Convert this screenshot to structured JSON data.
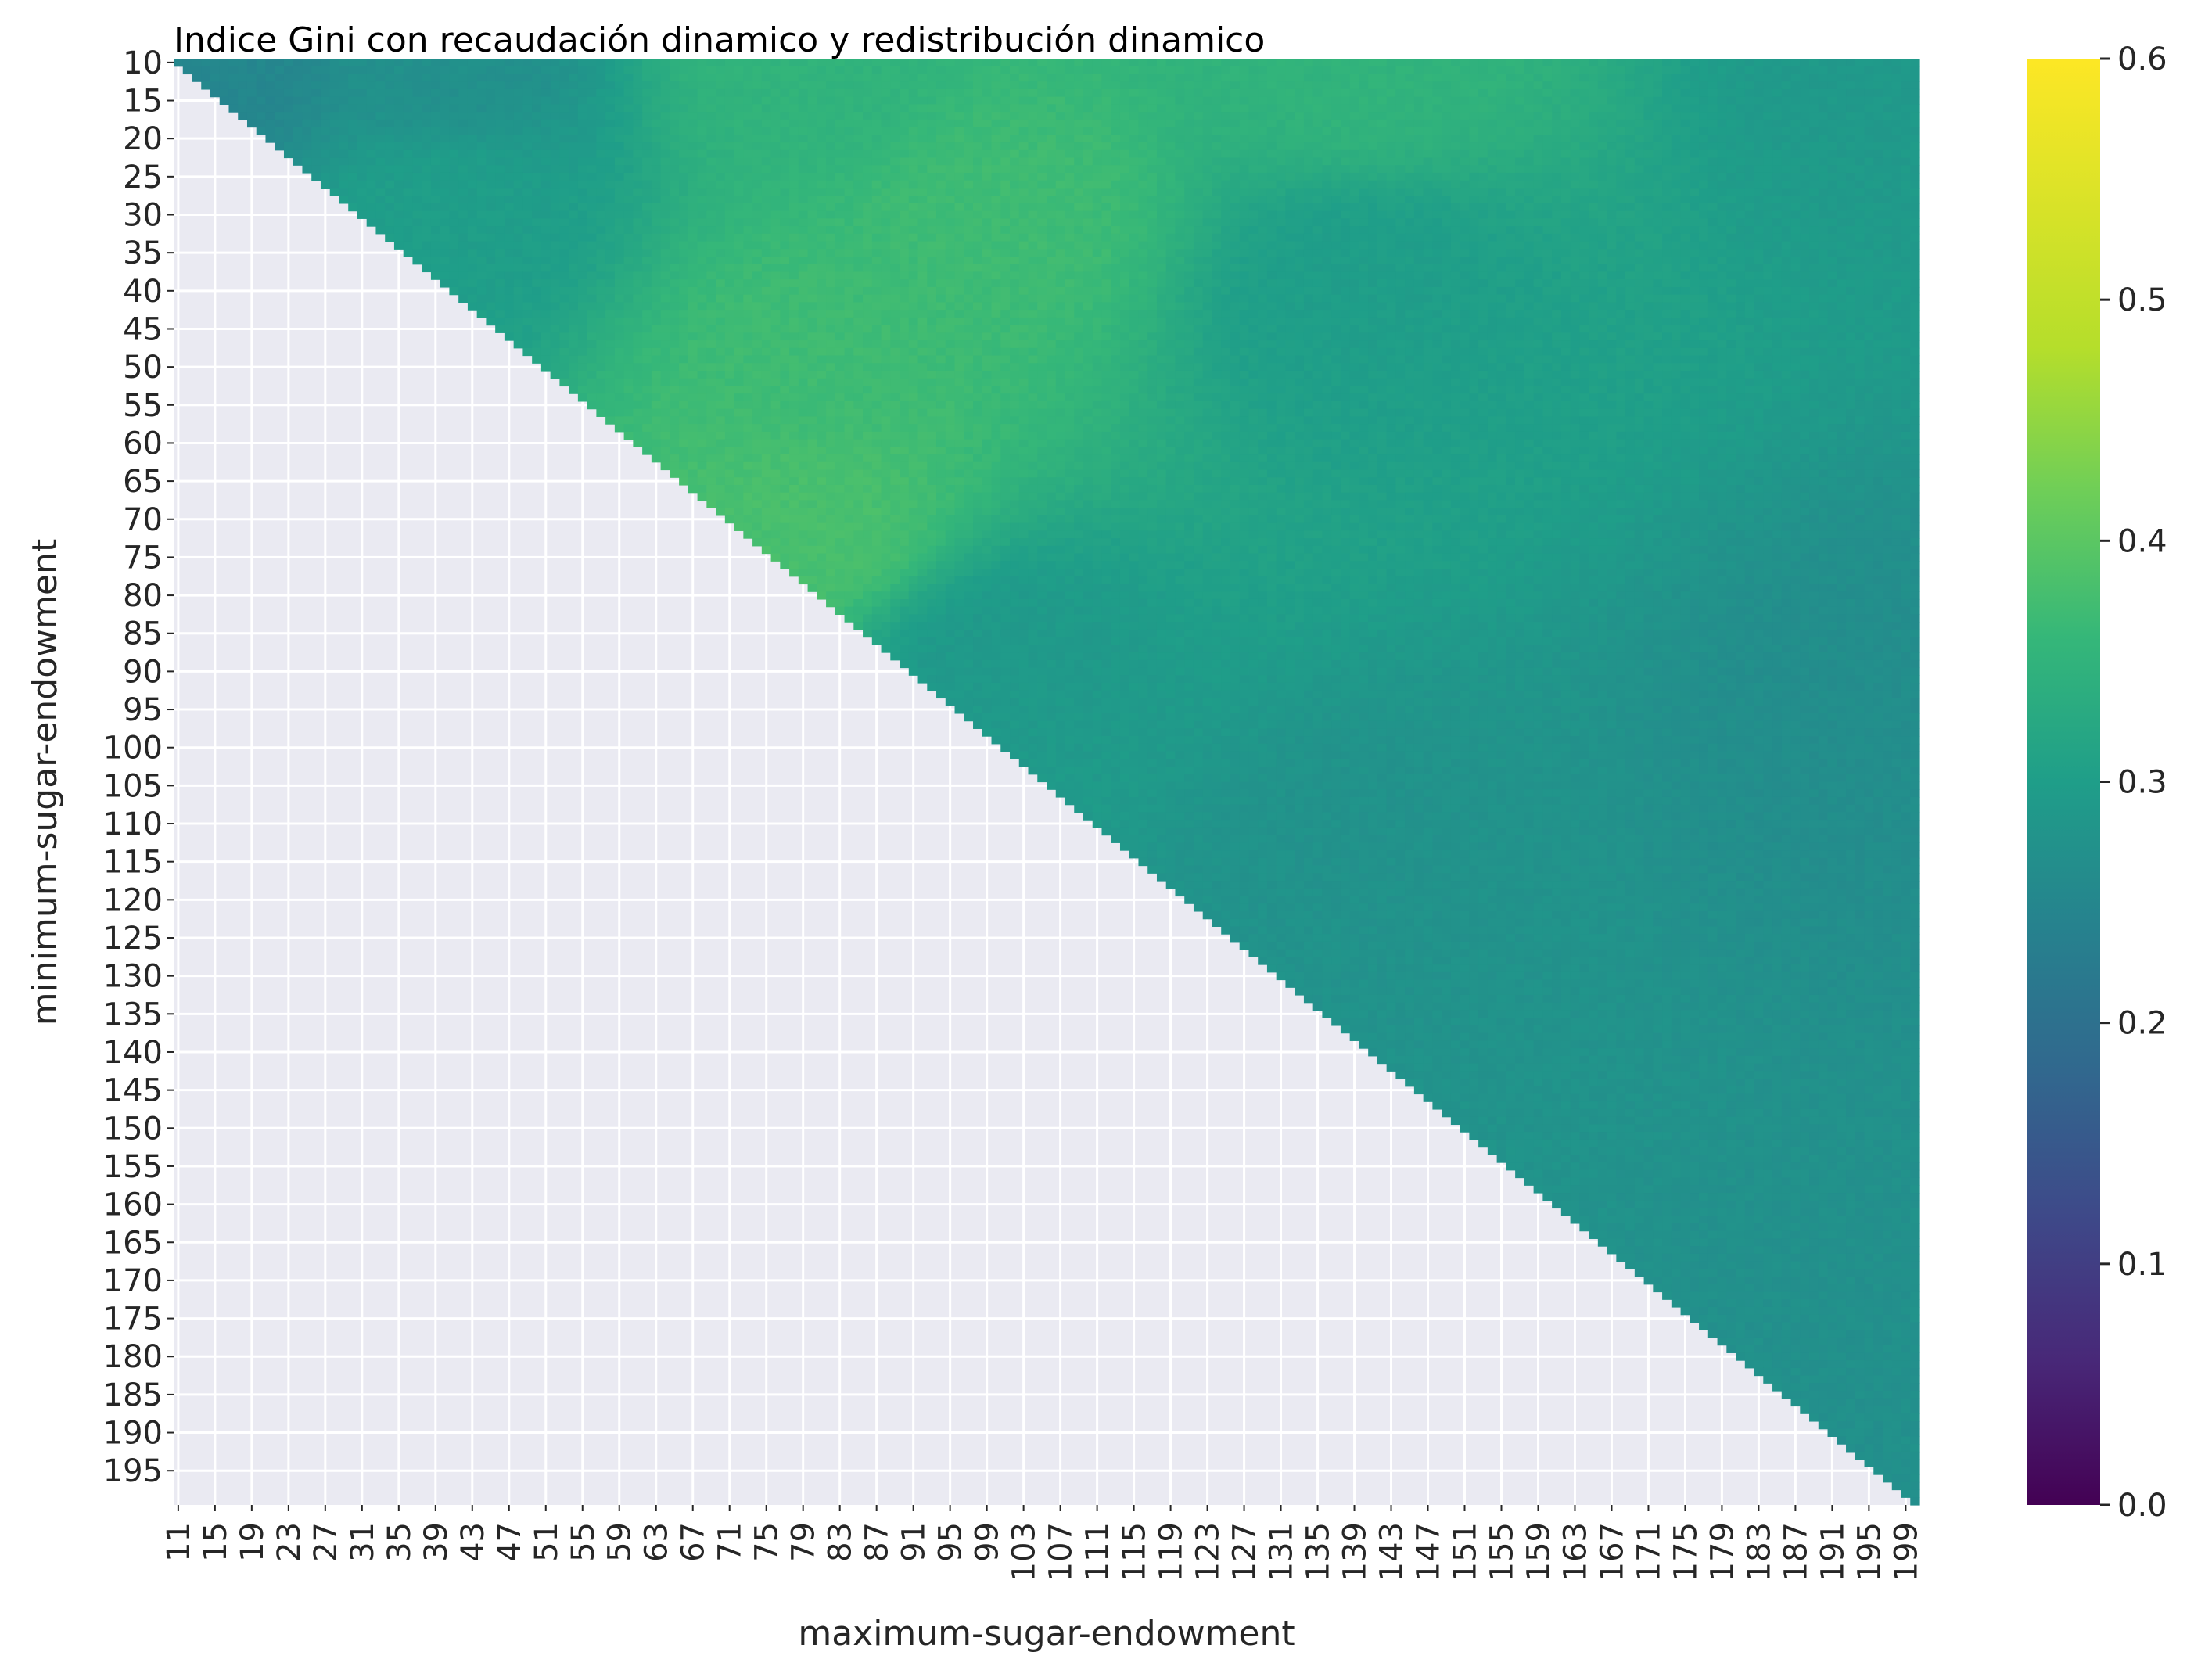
{
  "chart_data": {
    "type": "heatmap",
    "title": "Indice Gini con recaudación dinamico y redistribución dinamico",
    "xlabel": "maximum-sugar-endowment",
    "ylabel": "minimum-sugar-endowment",
    "x_range": [
      11,
      200
    ],
    "y_range": [
      10,
      199
    ],
    "x_tick_labels": [
      "11",
      "15",
      "19",
      "23",
      "27",
      "31",
      "35",
      "39",
      "43",
      "47",
      "51",
      "55",
      "59",
      "63",
      "67",
      "71",
      "75",
      "79",
      "83",
      "87",
      "91",
      "95",
      "99",
      "103",
      "107",
      "111",
      "115",
      "119",
      "123",
      "127",
      "131",
      "135",
      "139",
      "143",
      "147",
      "151",
      "155",
      "159",
      "163",
      "167",
      "171",
      "175",
      "179",
      "183",
      "187",
      "191",
      "195",
      "199"
    ],
    "y_tick_labels": [
      "10",
      "15",
      "20",
      "25",
      "30",
      "35",
      "40",
      "45",
      "50",
      "55",
      "60",
      "65",
      "70",
      "75",
      "80",
      "85",
      "90",
      "95",
      "100",
      "105",
      "110",
      "115",
      "120",
      "125",
      "130",
      "135",
      "140",
      "145",
      "150",
      "155",
      "160",
      "165",
      "170",
      "175",
      "180",
      "185",
      "190",
      "195"
    ],
    "mask": "cells with maximum <= minimum are empty",
    "value_estimates": [
      {
        "max": 15,
        "min": 10,
        "gini": 0.25
      },
      {
        "max": 40,
        "min": 10,
        "gini": 0.27
      },
      {
        "max": 40,
        "min": 30,
        "gini": 0.3
      },
      {
        "max": 80,
        "min": 10,
        "gini": 0.35
      },
      {
        "max": 80,
        "min": 50,
        "gini": 0.37
      },
      {
        "max": 80,
        "min": 70,
        "gini": 0.38
      },
      {
        "max": 100,
        "min": 30,
        "gini": 0.37
      },
      {
        "max": 100,
        "min": 90,
        "gini": 0.29
      },
      {
        "max": 140,
        "min": 10,
        "gini": 0.35
      },
      {
        "max": 140,
        "min": 40,
        "gini": 0.3
      },
      {
        "max": 140,
        "min": 120,
        "gini": 0.275
      },
      {
        "max": 200,
        "min": 10,
        "gini": 0.29
      },
      {
        "max": 200,
        "min": 100,
        "gini": 0.265
      },
      {
        "max": 200,
        "min": 190,
        "gini": 0.27
      }
    ],
    "colorbar": {
      "colormap": "viridis",
      "vmin": 0.0,
      "vmax": 0.6,
      "tick_labels": [
        "0.0",
        "0.1",
        "0.2",
        "0.3",
        "0.4",
        "0.5",
        "0.6"
      ]
    },
    "empty_color": "#eaeaf2",
    "grid": true
  }
}
